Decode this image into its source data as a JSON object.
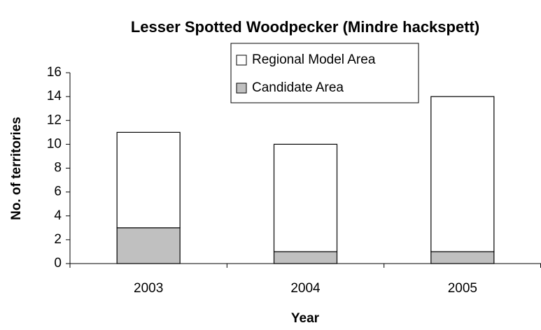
{
  "chart_data": {
    "type": "stacked_bar",
    "title": "Lesser Spotted Woodpecker (Mindre hackspett)",
    "x_label": "Year",
    "y_label": "No. of territories",
    "categories": [
      "2003",
      "2004",
      "2005"
    ],
    "series": [
      {
        "name": "Candidate Area",
        "color": "#c0c0c0",
        "values": [
          3,
          1,
          1
        ]
      },
      {
        "name": "Regional Model Area",
        "color": "#ffffff",
        "values": [
          8,
          9,
          13
        ]
      }
    ],
    "ylim": [
      0,
      16
    ],
    "yticks": [
      0,
      2,
      4,
      6,
      8,
      10,
      12,
      14,
      16
    ],
    "legend": "top"
  }
}
